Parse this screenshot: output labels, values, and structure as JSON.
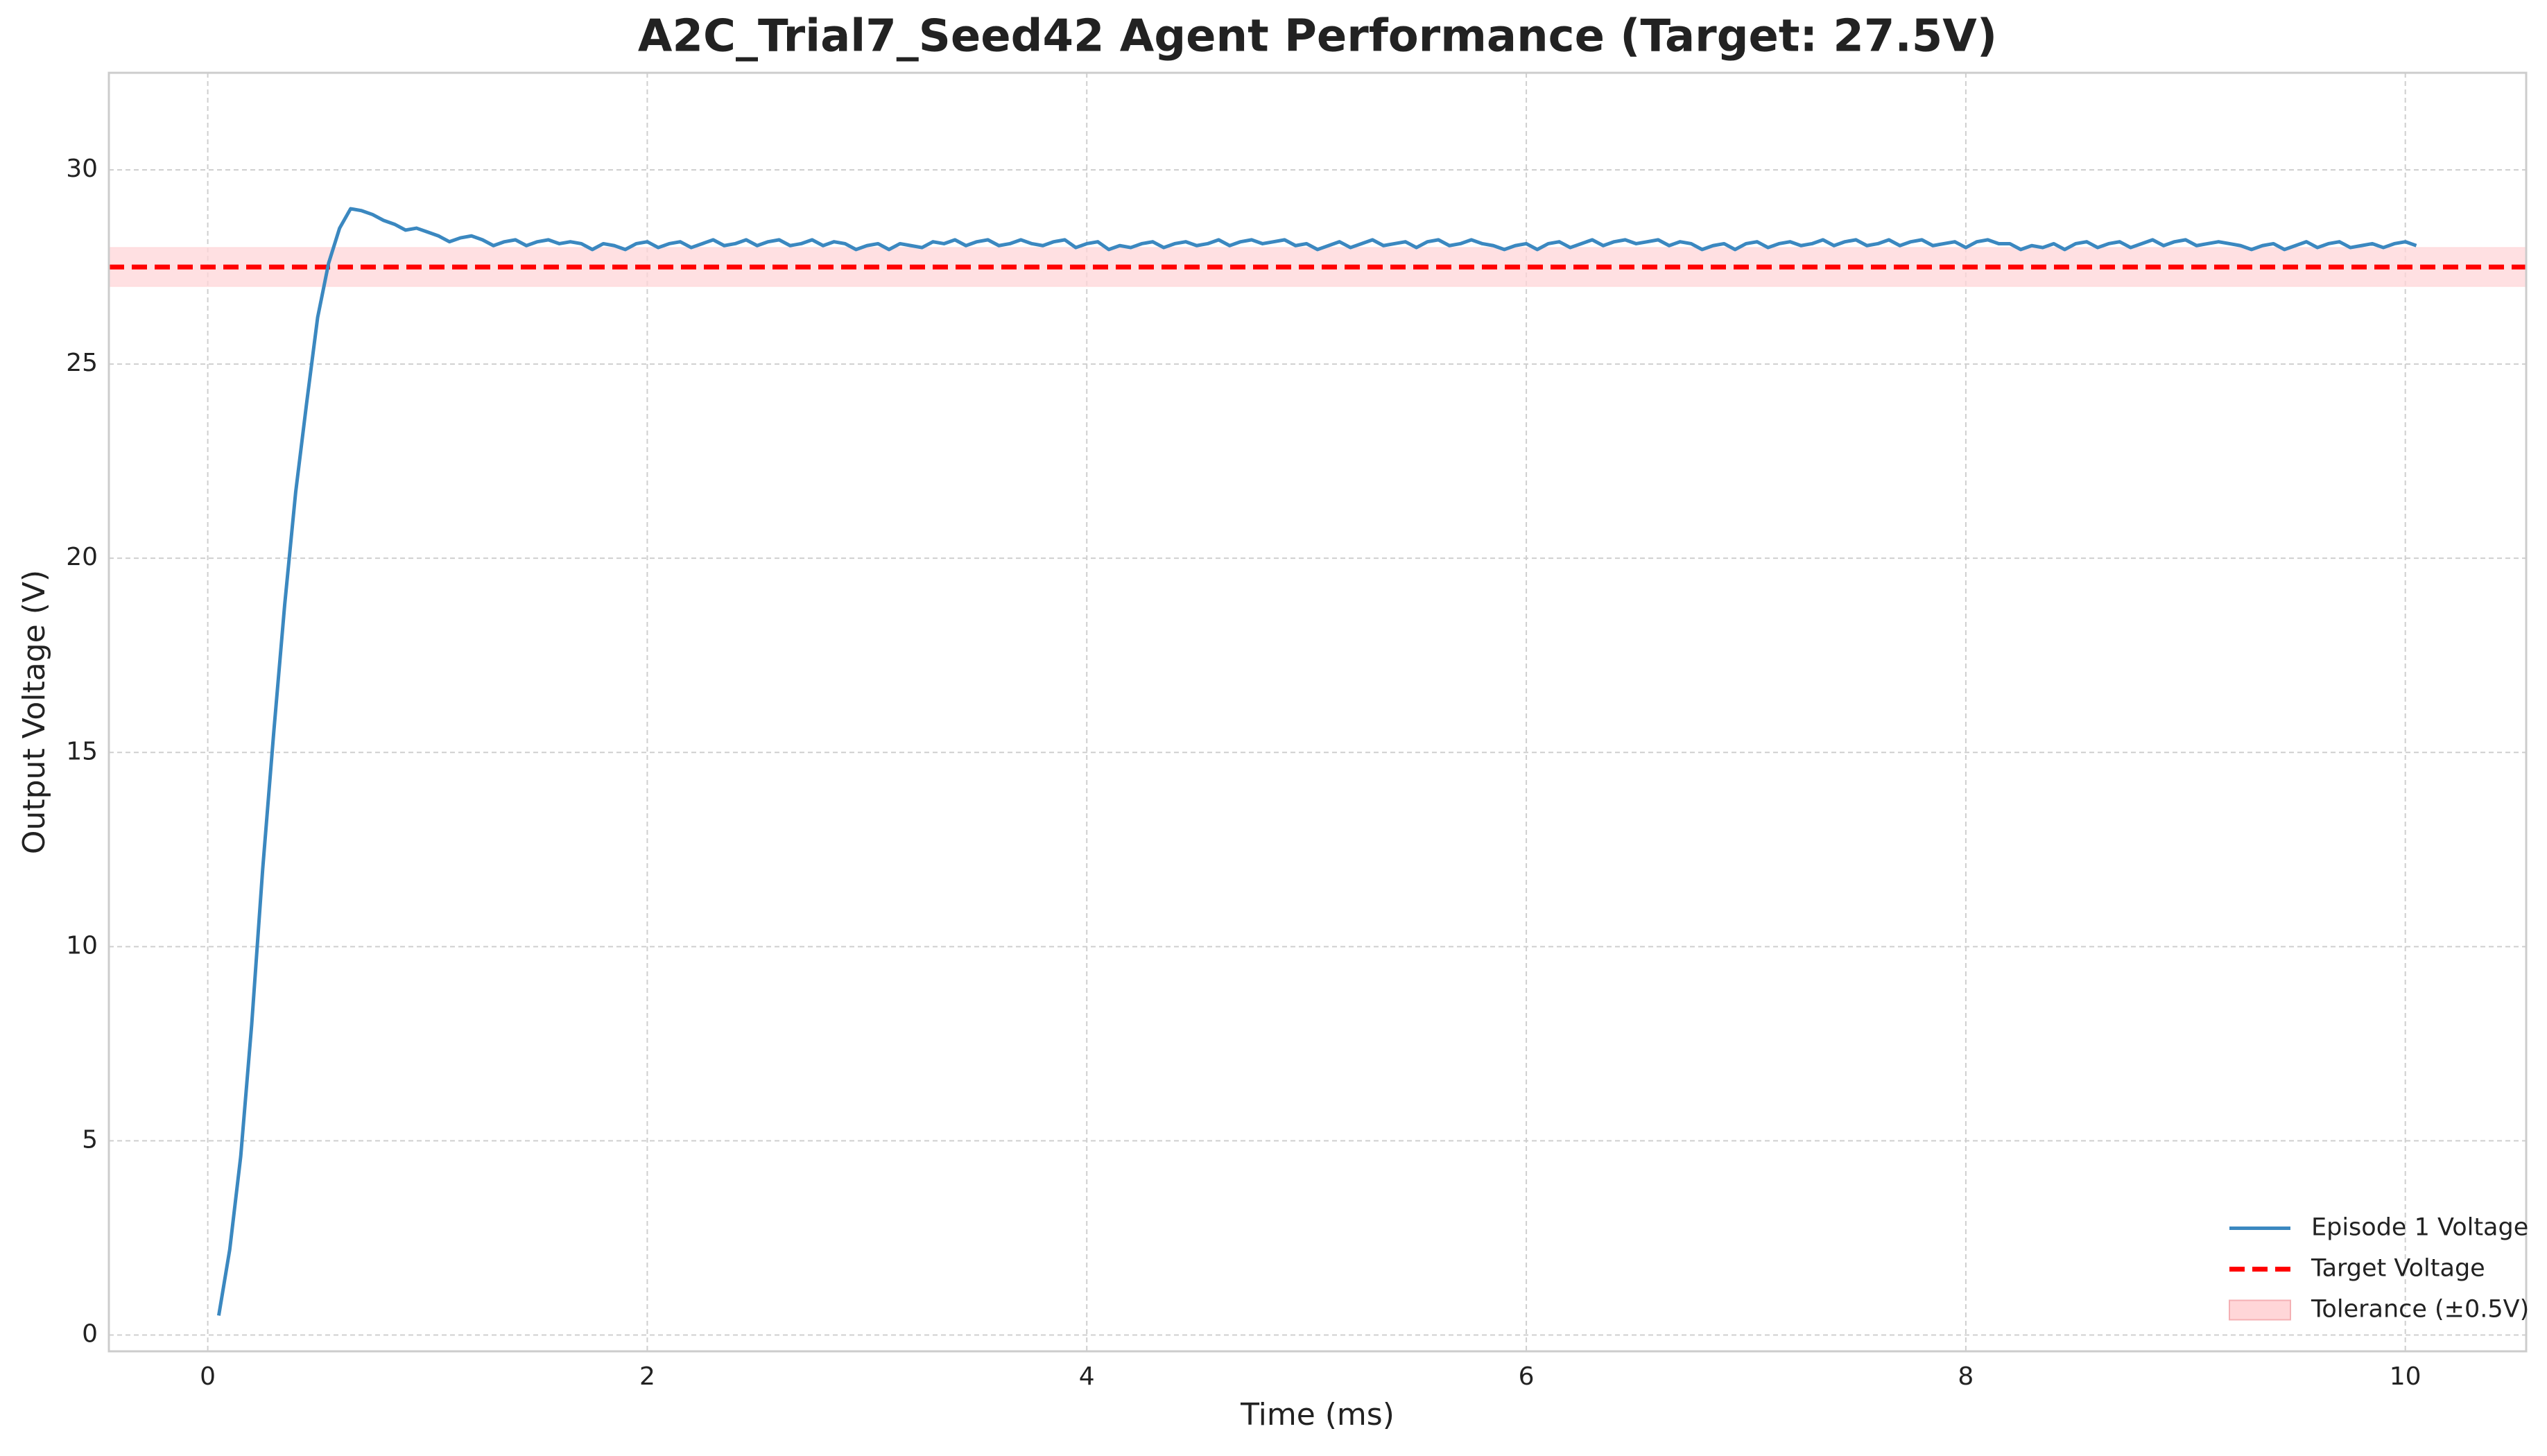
{
  "chart_data": {
    "type": "line",
    "title": "A2C_Trial7_Seed42 Agent Performance (Target: 27.5V)",
    "xlabel": "Time (ms)",
    "ylabel": "Output Voltage (V)",
    "x": [
      0.05,
      0.1,
      0.15,
      0.2,
      0.25,
      0.3,
      0.35,
      0.4,
      0.45,
      0.5,
      0.55,
      0.6,
      0.65,
      0.7,
      0.75,
      0.8,
      0.85,
      0.9,
      0.95,
      1.0,
      1.05,
      1.1,
      1.15,
      1.2,
      1.25,
      1.3,
      1.35,
      1.4,
      1.45,
      1.5,
      1.55,
      1.6,
      1.65,
      1.7,
      1.75,
      1.8,
      1.85,
      1.9,
      1.95,
      2.0,
      2.05,
      2.1,
      2.15,
      2.2,
      2.25,
      2.3,
      2.35,
      2.4,
      2.45,
      2.5,
      2.55,
      2.6,
      2.65,
      2.7,
      2.75,
      2.8,
      2.85,
      2.9,
      2.95,
      3.0,
      3.05,
      3.1,
      3.15,
      3.2,
      3.25,
      3.3,
      3.35,
      3.4,
      3.45,
      3.5,
      3.55,
      3.6,
      3.65,
      3.7,
      3.75,
      3.8,
      3.85,
      3.9,
      3.95,
      4.0,
      4.05,
      4.1,
      4.15,
      4.2,
      4.25,
      4.3,
      4.35,
      4.4,
      4.45,
      4.5,
      4.55,
      4.6,
      4.65,
      4.7,
      4.75,
      4.8,
      4.85,
      4.9,
      4.95,
      5.0,
      5.05,
      5.1,
      5.15,
      5.2,
      5.25,
      5.3,
      5.35,
      5.4,
      5.45,
      5.5,
      5.55,
      5.6,
      5.65,
      5.7,
      5.75,
      5.8,
      5.85,
      5.9,
      5.95,
      6.0,
      6.05,
      6.1,
      6.15,
      6.2,
      6.25,
      6.3,
      6.35,
      6.4,
      6.45,
      6.5,
      6.55,
      6.6,
      6.65,
      6.7,
      6.75,
      6.8,
      6.85,
      6.9,
      6.95,
      7.0,
      7.05,
      7.1,
      7.15,
      7.2,
      7.25,
      7.3,
      7.35,
      7.4,
      7.45,
      7.5,
      7.55,
      7.6,
      7.65,
      7.7,
      7.75,
      7.8,
      7.85,
      7.9,
      7.95,
      8.0,
      8.05,
      8.1,
      8.15,
      8.2,
      8.25,
      8.3,
      8.35,
      8.4,
      8.45,
      8.5,
      8.55,
      8.6,
      8.65,
      8.7,
      8.75,
      8.8,
      8.85,
      8.9,
      8.95,
      9.0,
      9.05,
      9.1,
      9.15,
      9.2,
      9.25,
      9.3,
      9.35,
      9.4,
      9.45,
      9.5,
      9.55,
      9.6,
      9.65,
      9.7,
      9.75,
      9.8,
      9.85,
      9.9,
      9.95,
      10.0,
      10.05
    ],
    "series": [
      {
        "name": "Episode 1 Voltage",
        "color": "#3b88c0",
        "values": [
          0.5,
          2.2,
          4.6,
          8,
          12,
          15.5,
          18.8,
          21.7,
          24,
          26.2,
          27.6,
          28.5,
          29.0,
          28.95,
          28.85,
          28.7,
          28.6,
          28.45,
          28.5,
          28.4,
          28.3,
          28.15,
          28.25,
          28.3,
          28.2,
          28.05,
          28.15,
          28.2,
          28.05,
          28.15,
          28.2,
          28.1,
          28.15,
          28.1,
          27.95,
          28.1,
          28.05,
          27.95,
          28.1,
          28.15,
          28.0,
          28.1,
          28.15,
          28.0,
          28.1,
          28.2,
          28.05,
          28.1,
          28.2,
          28.05,
          28.15,
          28.2,
          28.05,
          28.1,
          28.2,
          28.05,
          28.15,
          28.1,
          27.95,
          28.05,
          28.1,
          27.95,
          28.1,
          28.05,
          28.0,
          28.15,
          28.1,
          28.2,
          28.05,
          28.15,
          28.2,
          28.05,
          28.1,
          28.2,
          28.1,
          28.05,
          28.15,
          28.2,
          28.0,
          28.1,
          28.15,
          27.95,
          28.05,
          28.0,
          28.1,
          28.15,
          28.0,
          28.1,
          28.15,
          28.05,
          28.1,
          28.2,
          28.05,
          28.15,
          28.2,
          28.1,
          28.15,
          28.2,
          28.05,
          28.1,
          27.95,
          28.05,
          28.15,
          28.0,
          28.1,
          28.2,
          28.05,
          28.1,
          28.15,
          28.0,
          28.15,
          28.2,
          28.05,
          28.1,
          28.2,
          28.1,
          28.05,
          27.95,
          28.05,
          28.1,
          27.95,
          28.1,
          28.15,
          28.0,
          28.1,
          28.2,
          28.05,
          28.15,
          28.2,
          28.1,
          28.15,
          28.2,
          28.05,
          28.15,
          28.1,
          27.95,
          28.05,
          28.1,
          27.95,
          28.1,
          28.15,
          28.0,
          28.1,
          28.15,
          28.05,
          28.1,
          28.2,
          28.05,
          28.15,
          28.2,
          28.05,
          28.1,
          28.2,
          28.05,
          28.15,
          28.2,
          28.05,
          28.1,
          28.15,
          28.0,
          28.15,
          28.2,
          28.1,
          28.1,
          27.95,
          28.05,
          28.0,
          28.1,
          27.95,
          28.1,
          28.15,
          28.0,
          28.1,
          28.15,
          28.0,
          28.1,
          28.2,
          28.05,
          28.15,
          28.2,
          28.05,
          28.1,
          28.15,
          28.1,
          28.05,
          27.95,
          28.05,
          28.1,
          27.95,
          28.05,
          28.15,
          28.0,
          28.1,
          28.15,
          28.0,
          28.05,
          28.1,
          28.0,
          28.1,
          28.15,
          28.05
        ]
      }
    ],
    "reference_lines": [
      {
        "name": "Target Voltage",
        "value": 27.5,
        "color": "#ff0000"
      }
    ],
    "bands": [
      {
        "name": "Tolerance (±0.5V)",
        "range": [
          27,
          28
        ],
        "color": "#ffd6d8"
      }
    ],
    "xlim": [
      -0.45,
      10.55
    ],
    "ylim": [
      -0.42,
      32.5
    ],
    "xticks": [
      0,
      2,
      4,
      6,
      8,
      10
    ],
    "yticks": [
      0,
      5,
      10,
      15,
      20,
      25,
      30
    ],
    "grid": true,
    "legend": "lower right"
  }
}
